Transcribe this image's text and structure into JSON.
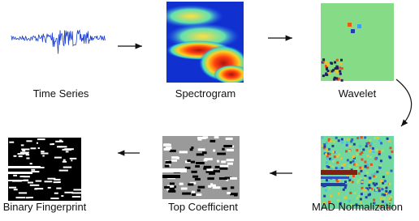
{
  "nodes": [
    {
      "label": "Time Series"
    },
    {
      "label": "Spectrogram"
    },
    {
      "label": "Wavelet"
    },
    {
      "label": "MAD Normalization"
    },
    {
      "label": "Top Coefficient"
    },
    {
      "label": "Binary Fingerprint"
    }
  ]
}
